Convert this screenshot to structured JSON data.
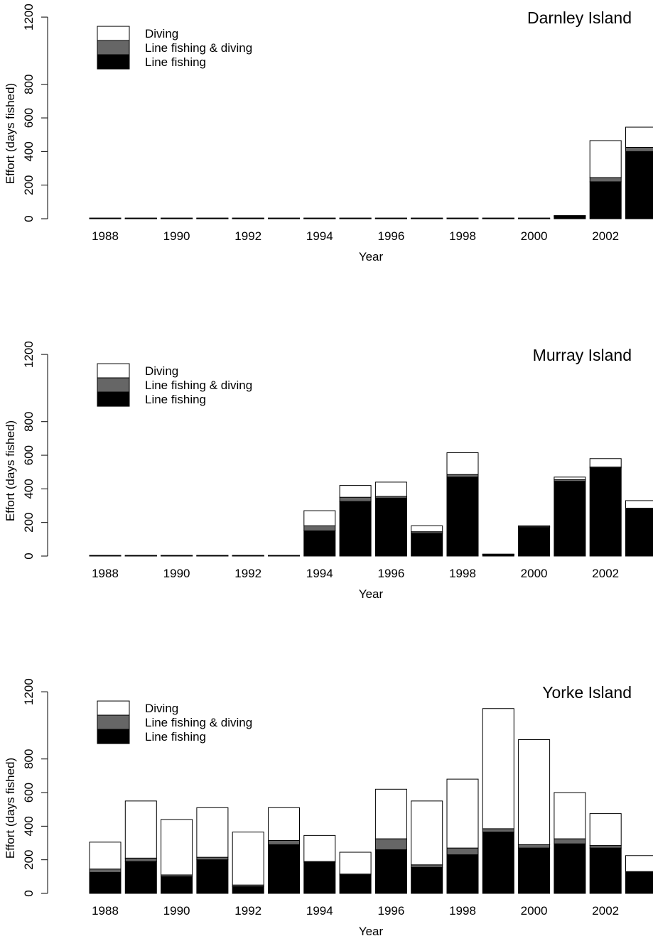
{
  "chart_data": [
    {
      "type": "bar",
      "stacked": true,
      "title": "Darnley Island",
      "xlabel": "Year",
      "ylabel": "Effort (days fished)",
      "ylim": [
        0,
        1200
      ],
      "yticks": [
        0,
        200,
        400,
        600,
        800,
        1200
      ],
      "xticks": [
        "1988",
        "1990",
        "1992",
        "1994",
        "1996",
        "1998",
        "2000",
        "2002"
      ],
      "categories": [
        "1988",
        "1989",
        "1990",
        "1991",
        "1992",
        "1993",
        "1994",
        "1995",
        "1996",
        "1997",
        "1998",
        "1999",
        "2000",
        "2001",
        "2002",
        "2003"
      ],
      "series": [
        {
          "name": "Line fishing",
          "color": "#000000",
          "values": [
            0,
            0,
            0,
            0,
            0,
            0,
            0,
            0,
            0,
            0,
            0,
            0,
            0,
            15,
            220,
            400
          ]
        },
        {
          "name": "Line fishing & diving",
          "color": "#666666",
          "values": [
            0,
            0,
            0,
            0,
            0,
            0,
            0,
            0,
            0,
            0,
            0,
            0,
            0,
            0,
            25,
            25
          ]
        },
        {
          "name": "Diving",
          "color": "#ffffff",
          "values": [
            0,
            0,
            0,
            0,
            0,
            0,
            0,
            0,
            0,
            0,
            0,
            0,
            0,
            0,
            220,
            120
          ]
        }
      ],
      "legend": {
        "position": "top-left",
        "order": [
          "Diving",
          "Line fishing & diving",
          "Line fishing"
        ]
      }
    },
    {
      "type": "bar",
      "stacked": true,
      "title": "Murray Island",
      "xlabel": "Year",
      "ylabel": "Effort (days fished)",
      "ylim": [
        0,
        1200
      ],
      "yticks": [
        0,
        200,
        400,
        600,
        800,
        1200
      ],
      "xticks": [
        "1988",
        "1990",
        "1992",
        "1994",
        "1996",
        "1998",
        "2000",
        "2002"
      ],
      "categories": [
        "1988",
        "1989",
        "1990",
        "1991",
        "1992",
        "1993",
        "1994",
        "1995",
        "1996",
        "1997",
        "1998",
        "1999",
        "2000",
        "2001",
        "2002",
        "2003"
      ],
      "series": [
        {
          "name": "Line fishing",
          "color": "#000000",
          "values": [
            0,
            0,
            0,
            0,
            0,
            0,
            150,
            325,
            345,
            135,
            470,
            8,
            170,
            445,
            525,
            280
          ]
        },
        {
          "name": "Line fishing & diving",
          "color": "#666666",
          "values": [
            0,
            0,
            0,
            0,
            0,
            0,
            30,
            25,
            10,
            10,
            15,
            0,
            5,
            10,
            5,
            5
          ]
        },
        {
          "name": "Diving",
          "color": "#ffffff",
          "values": [
            0,
            0,
            0,
            0,
            0,
            0,
            90,
            70,
            85,
            35,
            130,
            0,
            5,
            15,
            50,
            45
          ]
        }
      ],
      "legend": {
        "position": "top-left",
        "order": [
          "Diving",
          "Line fishing & diving",
          "Line fishing"
        ]
      }
    },
    {
      "type": "bar",
      "stacked": true,
      "title": "Yorke Island",
      "xlabel": "Year",
      "ylabel": "Effort (days fished)",
      "ylim": [
        0,
        1200
      ],
      "yticks": [
        0,
        200,
        400,
        600,
        800,
        1200
      ],
      "xticks": [
        "1988",
        "1990",
        "1992",
        "1994",
        "1996",
        "1998",
        "2000",
        "2002"
      ],
      "categories": [
        "1988",
        "1989",
        "1990",
        "1991",
        "1992",
        "1993",
        "1994",
        "1995",
        "1996",
        "1997",
        "1998",
        "1999",
        "2000",
        "2001",
        "2002",
        "2003"
      ],
      "series": [
        {
          "name": "Line fishing",
          "color": "#000000",
          "values": [
            125,
            190,
            100,
            200,
            40,
            290,
            185,
            110,
            260,
            155,
            230,
            365,
            270,
            295,
            270,
            125
          ]
        },
        {
          "name": "Line fishing & diving",
          "color": "#666666",
          "values": [
            20,
            20,
            10,
            15,
            10,
            25,
            5,
            5,
            65,
            15,
            40,
            20,
            20,
            30,
            15,
            5
          ]
        },
        {
          "name": "Diving",
          "color": "#ffffff",
          "values": [
            160,
            340,
            330,
            295,
            315,
            195,
            155,
            130,
            295,
            380,
            410,
            715,
            625,
            275,
            190,
            95
          ]
        }
      ],
      "legend": {
        "position": "top-left",
        "order": [
          "Diving",
          "Line fishing & diving",
          "Line fishing"
        ]
      }
    }
  ]
}
